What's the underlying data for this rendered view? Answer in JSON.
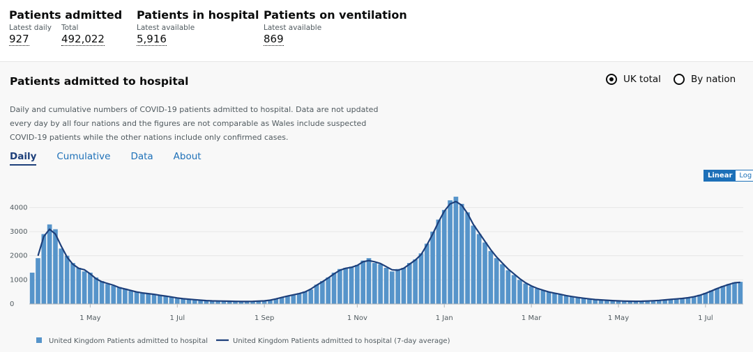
{
  "headline": {
    "items": [
      {
        "title": "Patients admitted",
        "cells": [
          {
            "label": "Latest daily",
            "value": "927"
          },
          {
            "label": "Total",
            "value": "492,022"
          }
        ]
      },
      {
        "title": "Patients in hospital",
        "cells": [
          {
            "label": "Latest available",
            "value": "5,916"
          }
        ]
      },
      {
        "title": "Patients on ventilation",
        "cells": [
          {
            "label": "Latest available",
            "value": "869"
          }
        ]
      }
    ]
  },
  "panel": {
    "title": "Patients admitted to hospital",
    "radios": [
      "UK total",
      "By nation"
    ],
    "description": "Daily and cumulative numbers of COVID-19 patients admitted to hospital. Data are not updated every day by all four nations and the figures are not comparable as Wales include suspected COVID-19 patients while the other nations include only confirmed cases.",
    "tabs": [
      "Daily",
      "Cumulative",
      "Data",
      "About"
    ],
    "scale_buttons": [
      "Linear",
      "Log"
    ]
  },
  "chart_data": {
    "type": "bar",
    "categories": [
      null,
      null,
      null,
      null,
      null,
      null,
      null,
      null,
      null,
      null,
      "1 May",
      null,
      null,
      null,
      null,
      null,
      null,
      null,
      null,
      null,
      null,
      null,
      null,
      null,
      null,
      "1 Jul",
      null,
      null,
      null,
      null,
      null,
      null,
      null,
      null,
      null,
      null,
      null,
      null,
      null,
      null,
      "1 Sep",
      null,
      null,
      null,
      null,
      null,
      null,
      null,
      null,
      null,
      null,
      null,
      null,
      null,
      null,
      null,
      "1 Nov",
      null,
      null,
      null,
      null,
      null,
      null,
      null,
      null,
      null,
      null,
      null,
      null,
      null,
      null,
      "1 Jan",
      null,
      null,
      null,
      null,
      null,
      null,
      null,
      null,
      null,
      null,
      null,
      null,
      null,
      null,
      "1 Mar",
      null,
      null,
      null,
      null,
      null,
      null,
      null,
      null,
      null,
      null,
      null,
      null,
      null,
      null,
      "1 May",
      null,
      null,
      null,
      null,
      null,
      null,
      null,
      null,
      null,
      null,
      null,
      null,
      null,
      null,
      "1 Jul",
      null,
      null,
      null,
      null,
      null,
      null
    ],
    "series": [
      {
        "name": "United Kingdom Patients admitted to hospital",
        "color": "#5694ca",
        "values": [
          1300,
          1900,
          2900,
          3300,
          3100,
          2300,
          2000,
          1700,
          1500,
          1350,
          1300,
          1100,
          950,
          830,
          760,
          700,
          640,
          540,
          520,
          450,
          440,
          380,
          370,
          320,
          300,
          260,
          210,
          190,
          185,
          150,
          145,
          135,
          120,
          125,
          110,
          105,
          110,
          100,
          115,
          120,
          140,
          150,
          220,
          260,
          340,
          370,
          450,
          520,
          600,
          800,
          950,
          1100,
          1300,
          1450,
          1500,
          1550,
          1620,
          1800,
          1900,
          1700,
          1650,
          1500,
          1350,
          1450,
          1500,
          1700,
          1850,
          2100,
          2500,
          3000,
          3500,
          3900,
          4300,
          4450,
          4150,
          3800,
          3250,
          2900,
          2550,
          2200,
          1900,
          1650,
          1400,
          1200,
          1000,
          850,
          730,
          640,
          560,
          490,
          440,
          390,
          340,
          300,
          260,
          230,
          200,
          180,
          165,
          150,
          135,
          125,
          118,
          110,
          110,
          120,
          130,
          140,
          150,
          175,
          200,
          220,
          240,
          270,
          310,
          380,
          460,
          560,
          650,
          750,
          830,
          900,
          920
        ]
      },
      {
        "name": "United Kingdom Patients admitted to hospital (7-day average)",
        "color": "#1d3f7a",
        "values": [
          null,
          2000,
          2800,
          3100,
          2900,
          2400,
          1950,
          1650,
          1480,
          1420,
          1250,
          1050,
          920,
          850,
          780,
          680,
          620,
          560,
          500,
          460,
          430,
          400,
          360,
          330,
          290,
          250,
          220,
          200,
          180,
          160,
          140,
          130,
          125,
          120,
          115,
          110,
          105,
          105,
          110,
          120,
          130,
          160,
          210,
          270,
          330,
          380,
          430,
          500,
          620,
          780,
          920,
          1080,
          1250,
          1400,
          1480,
          1520,
          1600,
          1750,
          1800,
          1750,
          1680,
          1550,
          1420,
          1400,
          1480,
          1650,
          1820,
          2050,
          2450,
          2900,
          3400,
          3850,
          4150,
          4250,
          4100,
          3750,
          3300,
          2950,
          2600,
          2250,
          1950,
          1700,
          1450,
          1250,
          1050,
          880,
          750,
          650,
          570,
          500,
          450,
          400,
          350,
          310,
          270,
          240,
          210,
          185,
          170,
          155,
          140,
          130,
          120,
          115,
          112,
          115,
          125,
          135,
          150,
          170,
          190,
          210,
          230,
          260,
          300,
          360,
          440,
          540,
          640,
          730,
          810,
          880,
          900
        ]
      }
    ],
    "ylim": [
      0,
      4500
    ],
    "yticks": [
      0,
      1000,
      2000,
      3000,
      4000
    ],
    "grid": true
  }
}
